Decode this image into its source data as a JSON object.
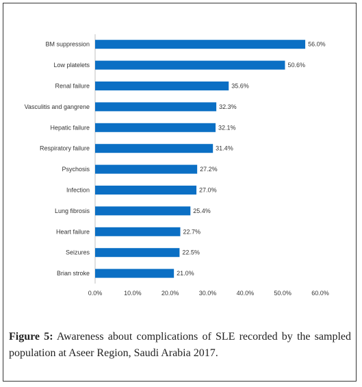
{
  "chart_data": {
    "type": "bar",
    "orientation": "horizontal",
    "categories": [
      "BM suppression",
      "Low platelets",
      "Renal failure",
      "Vasculitis and gangrene",
      "Hepatic failure",
      "Respiratory failure",
      "Psychosis",
      "Infection",
      "Lung fibrosis",
      "Heart failure",
      "Seizures",
      "Brian stroke"
    ],
    "values": [
      56.0,
      50.6,
      35.6,
      32.3,
      32.1,
      31.4,
      27.2,
      27.0,
      25.4,
      22.7,
      22.5,
      21.0
    ],
    "value_labels": [
      "56.0%",
      "50.6%",
      "35.6%",
      "32.3%",
      "32.1%",
      "31.4%",
      "27.2%",
      "27.0%",
      "25.4%",
      "22.7%",
      "22.5%",
      "21.0%"
    ],
    "xlim": [
      0,
      60
    ],
    "xticks": [
      "0.0%",
      "10.0%",
      "20.0%",
      "30.0%",
      "40.0%",
      "50.0%",
      "60.0%"
    ],
    "grid": false,
    "bar_color": "#0b6fc4",
    "title": "",
    "xlabel": "",
    "ylabel": ""
  },
  "caption": {
    "label": "Figure 5:",
    "text": "Awareness about complications of SLE recorded by the sampled population at Aseer Region, Saudi Arabia 2017."
  }
}
